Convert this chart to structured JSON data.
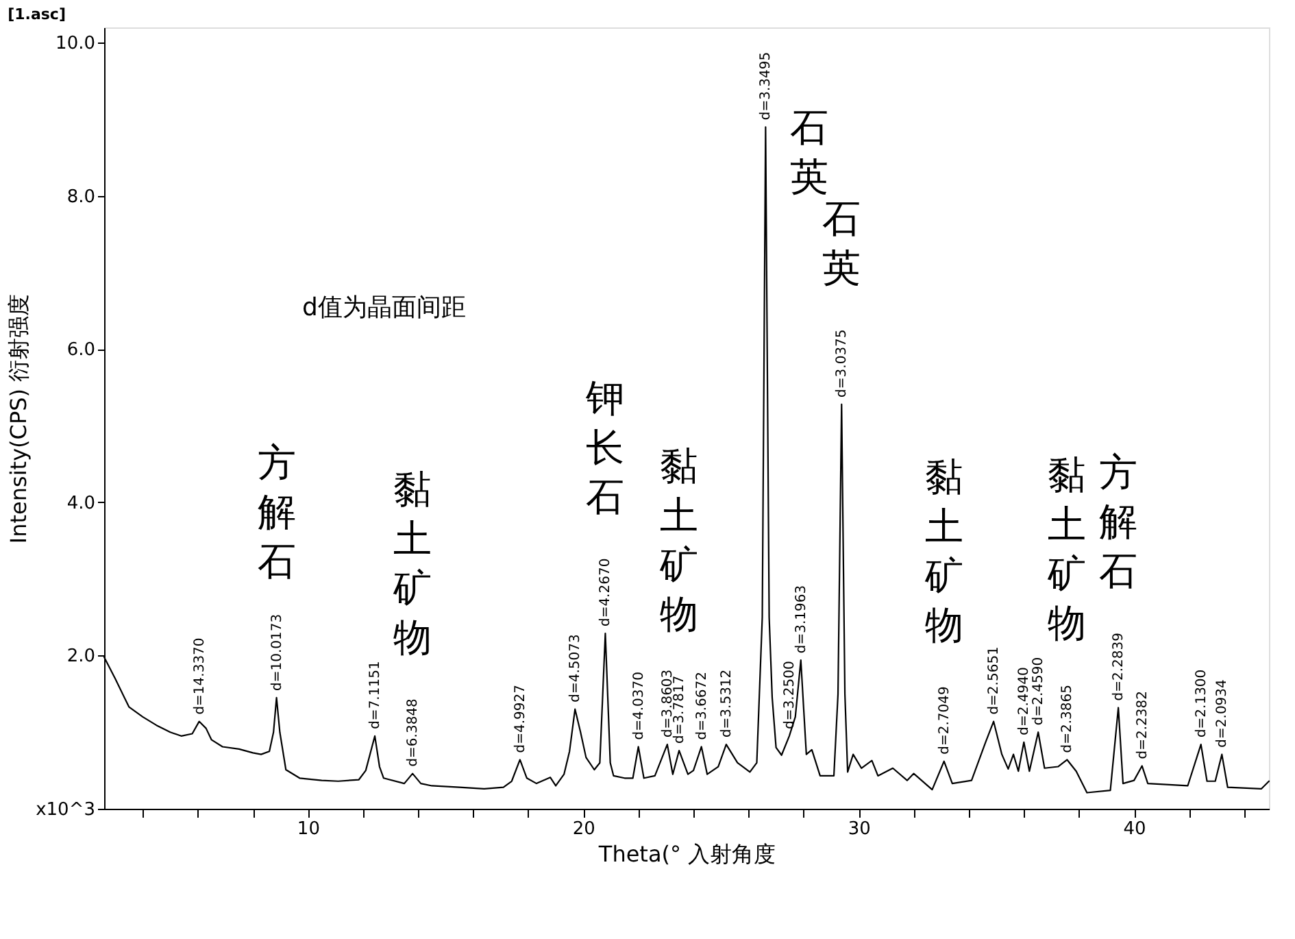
{
  "chart_data": {
    "type": "line",
    "title": "[1.asc]",
    "xlabel": "Theta(°  入射角度",
    "ylabel": "Intensity(CPS)  衍射强度",
    "xlim": [
      2.6,
      44.9
    ],
    "ylim": [
      0,
      10.2
    ],
    "xticks": [
      {
        "value": 4,
        "label": null
      },
      {
        "value": 6,
        "label": null
      },
      {
        "value": 8,
        "label": null
      },
      10,
      {
        "value": 12,
        "label": null
      },
      {
        "value": 14,
        "label": null
      },
      {
        "value": 16,
        "label": null
      },
      {
        "value": 18,
        "label": null
      },
      20,
      {
        "value": 22,
        "label": null
      },
      {
        "value": 24,
        "label": null
      },
      {
        "value": 26,
        "label": null
      },
      {
        "value": 28,
        "label": null
      },
      30,
      {
        "value": 32,
        "label": null
      },
      {
        "value": 34,
        "label": null
      },
      {
        "value": 36,
        "label": null
      },
      {
        "value": 38,
        "label": null
      },
      40,
      {
        "value": 42,
        "label": null
      },
      {
        "value": 44,
        "label": null
      }
    ],
    "yticks": [
      {
        "value": 0,
        "label": "x10^3"
      },
      {
        "value": 2,
        "label": "2.0"
      },
      {
        "value": 4,
        "label": "4.0"
      },
      {
        "value": 6,
        "label": "6.0"
      },
      {
        "value": 8,
        "label": "8.0"
      },
      {
        "value": 10,
        "label": "10.0"
      }
    ],
    "grid": false,
    "series": [
      {
        "color": "#000000",
        "x": [
          2.6,
          3.0,
          3.5,
          4.0,
          4.5,
          5.0,
          5.4,
          5.8,
          6.05,
          6.3,
          6.5,
          6.9,
          7.5,
          8.0,
          8.3,
          8.6,
          8.75,
          8.86,
          8.98,
          9.2,
          9.7,
          10.5,
          11.1,
          11.85,
          12.1,
          12.43,
          12.6,
          12.75,
          13.5,
          13.8,
          14.1,
          14.5,
          15.5,
          16.4,
          17.1,
          17.4,
          17.7,
          17.95,
          18.3,
          18.8,
          19.0,
          19.3,
          19.5,
          19.7,
          19.9,
          20.1,
          20.4,
          20.6,
          20.8,
          20.98,
          21.1,
          21.5,
          21.8,
          22.0,
          22.2,
          22.6,
          23.05,
          23.25,
          23.48,
          23.8,
          24.0,
          24.29,
          24.5,
          24.9,
          25.19,
          25.6,
          26.05,
          26.3,
          26.5,
          26.62,
          26.75,
          26.86,
          27.0,
          27.2,
          27.48,
          27.7,
          27.9,
          28.1,
          28.3,
          28.6,
          29.1,
          29.25,
          29.38,
          29.5,
          29.6,
          29.8,
          30.1,
          30.48,
          30.7,
          31.24,
          31.76,
          32.0,
          32.67,
          33.1,
          33.4,
          34.1,
          34.6,
          34.9,
          35.2,
          35.43,
          35.62,
          35.8,
          36.0,
          36.2,
          36.52,
          36.75,
          37.24,
          37.57,
          37.9,
          38.29,
          39.14,
          39.43,
          39.6,
          40.0,
          40.29,
          40.5,
          41.95,
          42.43,
          42.65,
          42.95,
          43.19,
          43.4,
          44.62,
          44.9
        ],
        "values": [
          1.98,
          1.7,
          1.33,
          1.2,
          1.09,
          1.0,
          0.95,
          0.98,
          1.14,
          1.05,
          0.9,
          0.81,
          0.78,
          0.73,
          0.71,
          0.75,
          1.0,
          1.45,
          1.0,
          0.51,
          0.4,
          0.37,
          0.36,
          0.38,
          0.5,
          0.95,
          0.55,
          0.4,
          0.33,
          0.46,
          0.33,
          0.3,
          0.28,
          0.26,
          0.28,
          0.36,
          0.64,
          0.4,
          0.33,
          0.41,
          0.3,
          0.45,
          0.75,
          1.3,
          1.0,
          0.67,
          0.51,
          0.6,
          2.29,
          0.6,
          0.43,
          0.4,
          0.4,
          0.81,
          0.4,
          0.43,
          0.84,
          0.45,
          0.76,
          0.45,
          0.5,
          0.81,
          0.45,
          0.55,
          0.84,
          0.6,
          0.48,
          0.6,
          2.5,
          8.9,
          2.5,
          1.45,
          0.8,
          0.7,
          0.95,
          1.2,
          1.94,
          0.71,
          0.77,
          0.43,
          0.43,
          1.5,
          5.28,
          1.5,
          0.48,
          0.71,
          0.53,
          0.63,
          0.43,
          0.53,
          0.37,
          0.46,
          0.25,
          0.62,
          0.33,
          0.37,
          0.86,
          1.14,
          0.71,
          0.52,
          0.71,
          0.49,
          0.87,
          0.49,
          1.0,
          0.53,
          0.55,
          0.64,
          0.49,
          0.21,
          0.24,
          1.32,
          0.33,
          0.37,
          0.56,
          0.33,
          0.3,
          0.84,
          0.36,
          0.36,
          0.71,
          0.28,
          0.26,
          0.36
        ]
      }
    ],
    "annotations": [
      {
        "text": "d=14.3370",
        "x": 6.05,
        "y": 1.14
      },
      {
        "text": "d=10.0173",
        "x": 8.86,
        "y": 1.45
      },
      {
        "text": "d=7.1151",
        "x": 12.43,
        "y": 0.95
      },
      {
        "text": "d=6.3848",
        "x": 13.8,
        "y": 0.46
      },
      {
        "text": "d=4.9927",
        "x": 17.7,
        "y": 0.64
      },
      {
        "text": "d=4.5073",
        "x": 19.7,
        "y": 1.3
      },
      {
        "text": "d=4.2670",
        "x": 20.8,
        "y": 2.29
      },
      {
        "text": "d=4.0370",
        "x": 22.0,
        "y": 0.81
      },
      {
        "text": "d=3.8603",
        "x": 23.05,
        "y": 0.84
      },
      {
        "text": "d=3.7817",
        "x": 23.48,
        "y": 0.76
      },
      {
        "text": "d=3.6672",
        "x": 24.29,
        "y": 0.81
      },
      {
        "text": "d=3.5312",
        "x": 25.19,
        "y": 0.84
      },
      {
        "text": "d=3.3495",
        "x": 26.62,
        "y": 8.9
      },
      {
        "text": "d=3.2500",
        "x": 27.48,
        "y": 0.95
      },
      {
        "text": "d=3.1963",
        "x": 27.9,
        "y": 1.94
      },
      {
        "text": "d=3.0375",
        "x": 29.38,
        "y": 5.28
      },
      {
        "text": "d=2.7049",
        "x": 33.1,
        "y": 0.62
      },
      {
        "text": "d=2.5651",
        "x": 34.9,
        "y": 1.14
      },
      {
        "text": "d=2.4940",
        "x": 36.0,
        "y": 0.87
      },
      {
        "text": "d=2.4590",
        "x": 36.52,
        "y": 1.0
      },
      {
        "text": "d=2.3865",
        "x": 37.57,
        "y": 0.64
      },
      {
        "text": "d=2.2839",
        "x": 39.43,
        "y": 1.32
      },
      {
        "text": "d=2.2382",
        "x": 40.29,
        "y": 0.56
      },
      {
        "text": "d=2.1300",
        "x": 42.43,
        "y": 0.84
      },
      {
        "text": "d=2.0934",
        "x": 43.19,
        "y": 0.71
      },
      {
        "text": "方解石",
        "x": 8.86,
        "y": 1.45
      },
      {
        "text": "黏土矿物",
        "x": 13.8,
        "y": 0.46
      },
      {
        "text": "钾长石",
        "x": 20.8,
        "y": 2.29
      },
      {
        "text": "黏土矿物",
        "x": 23.48,
        "y": 0.76
      },
      {
        "text": "石英",
        "x": 26.62,
        "y": 8.9
      },
      {
        "text": "石英",
        "x": 29.38,
        "y": 5.28
      },
      {
        "text": "黏土矿物",
        "x": 33.1,
        "y": 0.62
      },
      {
        "text": "黏土矿物",
        "x": 37.57,
        "y": 0.64
      },
      {
        "text": "方解石",
        "x": 39.43,
        "y": 1.32
      },
      "d值为晶面间距"
    ]
  }
}
